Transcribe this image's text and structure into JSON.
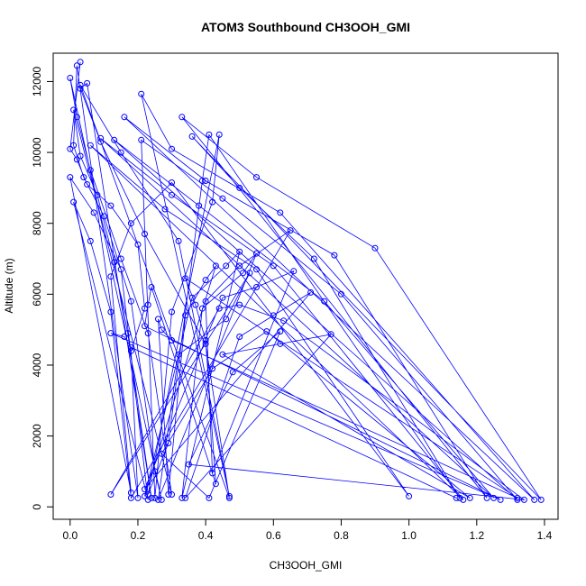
{
  "chart_data": {
    "type": "line",
    "title": "ATOM3 Southbound CH3OOH_GMI",
    "xlabel": "CH3OOH_GMI",
    "ylabel": "Altitude (m)",
    "xlim": [
      -0.05,
      1.44
    ],
    "ylim": [
      -350,
      12800
    ],
    "x_ticks": [
      0.0,
      0.2,
      0.4,
      0.6,
      0.8,
      1.0,
      1.2,
      1.4
    ],
    "x_tick_labels": [
      "0.0",
      "0.2",
      "0.4",
      "0.6",
      "0.8",
      "1.0",
      "1.2",
      "1.4"
    ],
    "y_ticks": [
      0,
      2000,
      4000,
      6000,
      8000,
      10000,
      12000
    ],
    "y_tick_labels": [
      "0",
      "2000",
      "4000",
      "6000",
      "8000",
      "10000",
      "12000"
    ],
    "grid": false,
    "series": [
      {
        "color": "#0000ff",
        "marker": "open-circle",
        "points": [
          [
            0.03,
            12550
          ],
          [
            0.0,
            10100
          ],
          [
            0.02,
            9800
          ],
          [
            0.05,
            9100
          ],
          [
            0.12,
            8500
          ],
          [
            0.2,
            7400
          ],
          [
            0.22,
            5600
          ],
          [
            0.18,
            4400
          ],
          [
            0.2,
            250
          ],
          [
            0.02,
            12450
          ],
          [
            0.01,
            10200
          ],
          [
            0.04,
            9300
          ],
          [
            0.1,
            8200
          ],
          [
            0.18,
            5800
          ],
          [
            0.25,
            1000
          ],
          [
            0.27,
            200
          ],
          [
            0.0,
            12100
          ],
          [
            0.02,
            11000
          ],
          [
            0.06,
            9500
          ],
          [
            0.15,
            7000
          ],
          [
            0.23,
            4900
          ],
          [
            0.3,
            350
          ],
          [
            0.01,
            11200
          ],
          [
            0.03,
            9900
          ],
          [
            0.08,
            8800
          ],
          [
            0.13,
            6900
          ],
          [
            0.17,
            4900
          ],
          [
            0.24,
            250
          ],
          [
            0.05,
            11950
          ],
          [
            0.03,
            11800
          ],
          [
            0.09,
            10300
          ],
          [
            0.22,
            7700
          ],
          [
            0.4,
            4600
          ],
          [
            0.47,
            250
          ],
          [
            0.03,
            11900
          ],
          [
            0.15,
            10000
          ],
          [
            0.32,
            7500
          ],
          [
            0.47,
            300
          ],
          [
            0.21,
            11650
          ],
          [
            0.3,
            10100
          ],
          [
            0.62,
            8300
          ],
          [
            1.37,
            200
          ],
          [
            0.16,
            11000
          ],
          [
            0.4,
            9200
          ],
          [
            0.78,
            7100
          ],
          [
            1.23,
            250
          ],
          [
            0.33,
            11000
          ],
          [
            0.55,
            9300
          ],
          [
            0.9,
            7300
          ],
          [
            1.39,
            200
          ],
          [
            0.36,
            10450
          ],
          [
            0.5,
            9000
          ],
          [
            0.72,
            7000
          ],
          [
            1.15,
            250
          ],
          [
            0.41,
            10500
          ],
          [
            0.39,
            9200
          ],
          [
            0.29,
            1800
          ],
          [
            0.23,
            350
          ],
          [
            0.44,
            10500
          ],
          [
            0.42,
            8600
          ],
          [
            0.3,
            5500
          ],
          [
            0.25,
            250
          ],
          [
            0.21,
            10350
          ],
          [
            0.45,
            8700
          ],
          [
            0.8,
            6000
          ],
          [
            1.32,
            200
          ],
          [
            0.13,
            10350
          ],
          [
            0.38,
            8500
          ],
          [
            0.75,
            5800
          ],
          [
            1.25,
            250
          ],
          [
            0.09,
            10400
          ],
          [
            0.3,
            8800
          ],
          [
            0.6,
            6800
          ],
          [
            1.16,
            200
          ],
          [
            0.06,
            10200
          ],
          [
            0.28,
            8400
          ],
          [
            0.55,
            6700
          ],
          [
            1.0,
            300
          ],
          [
            0.3,
            9150
          ],
          [
            0.18,
            8000
          ],
          [
            0.12,
            6500
          ],
          [
            0.18,
            400
          ],
          [
            0.0,
            9300
          ],
          [
            0.07,
            8300
          ],
          [
            0.15,
            6700
          ],
          [
            0.23,
            200
          ],
          [
            0.01,
            8600
          ],
          [
            0.06,
            7500
          ],
          [
            0.12,
            5500
          ],
          [
            0.18,
            250
          ],
          [
            0.65,
            7800
          ],
          [
            0.5,
            6800
          ],
          [
            0.4,
            5800
          ],
          [
            0.42,
            950
          ],
          [
            0.66,
            6650
          ],
          [
            0.55,
            6200
          ],
          [
            0.45,
            5900
          ],
          [
            0.22,
            500
          ],
          [
            0.71,
            6050
          ],
          [
            0.6,
            5400
          ],
          [
            0.5,
            4800
          ],
          [
            0.34,
            250
          ],
          [
            0.77,
            4870
          ],
          [
            0.62,
            4600
          ],
          [
            0.45,
            4300
          ],
          [
            1.18,
            250
          ],
          [
            0.58,
            4950
          ],
          [
            0.42,
            3900
          ],
          [
            0.27,
            1500
          ],
          [
            0.41,
            250
          ],
          [
            0.62,
            4950
          ],
          [
            0.48,
            3800
          ],
          [
            0.35,
            1200
          ],
          [
            1.34,
            200
          ],
          [
            0.63,
            5250
          ],
          [
            0.5,
            5700
          ],
          [
            0.44,
            5600
          ],
          [
            0.12,
            350
          ],
          [
            0.53,
            6600
          ],
          [
            0.46,
            5300
          ],
          [
            0.32,
            4300
          ],
          [
            0.26,
            200
          ],
          [
            0.55,
            7150
          ],
          [
            0.51,
            6600
          ],
          [
            0.39,
            5600
          ],
          [
            0.33,
            250
          ],
          [
            0.5,
            7200
          ],
          [
            0.46,
            6800
          ],
          [
            0.36,
            5900
          ],
          [
            0.22,
            300
          ],
          [
            0.43,
            6800
          ],
          [
            0.4,
            6400
          ],
          [
            0.34,
            5400
          ],
          [
            0.29,
            350
          ],
          [
            0.26,
            5300
          ],
          [
            0.27,
            5000
          ],
          [
            0.3,
            4700
          ],
          [
            1.32,
            250
          ],
          [
            0.34,
            6450
          ],
          [
            0.37,
            5700
          ],
          [
            0.4,
            4700
          ],
          [
            0.43,
            650
          ],
          [
            0.24,
            6200
          ],
          [
            0.23,
            5700
          ],
          [
            0.22,
            5100
          ],
          [
            1.27,
            200
          ],
          [
            0.12,
            4900
          ],
          [
            0.16,
            4800
          ],
          [
            0.18,
            4500
          ],
          [
            1.14,
            250
          ]
        ]
      }
    ]
  }
}
